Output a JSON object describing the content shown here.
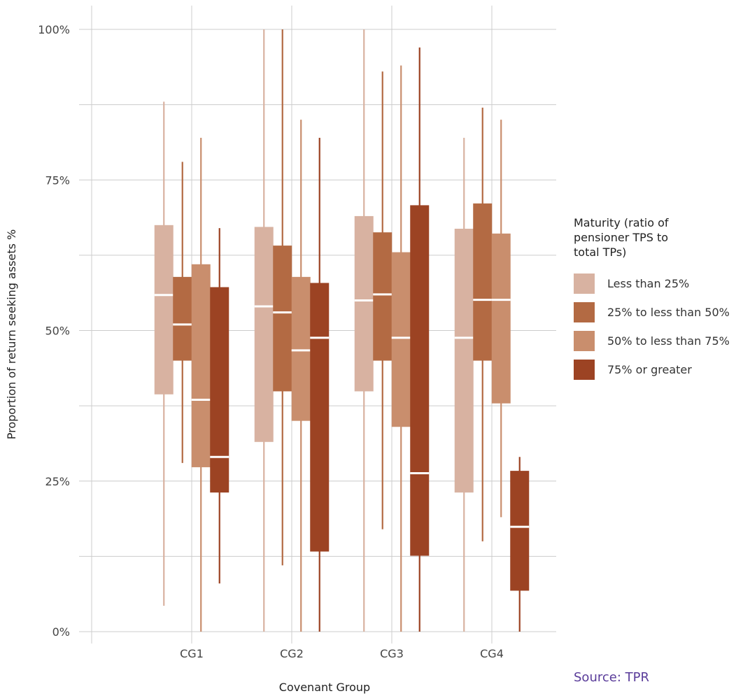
{
  "chart_data": {
    "type": "boxplot",
    "xlabel": "Covenant Group",
    "ylabel": "Proportion of return seeking assets %",
    "categories": [
      "CG1",
      "CG2",
      "CG3",
      "CG4"
    ],
    "ylim": [
      0,
      100
    ],
    "yticks": [
      0,
      25,
      50,
      75,
      100
    ],
    "ytick_labels": [
      "0%",
      "25%",
      "50%",
      "75%",
      "100%"
    ],
    "grid": true,
    "legend_position": "right",
    "legend_title": "Maturity (ratio of\npensioner TPS to\ntotal TPs)",
    "series": [
      {
        "name": "Less than 25%",
        "color": "#d8b2a1",
        "boxes": [
          {
            "whisker_low": 4.3,
            "q1": 39.4,
            "median": 55.9,
            "q3": 67.5,
            "whisker_high": 88
          },
          {
            "whisker_low": 0,
            "q1": 31.5,
            "median": 54,
            "q3": 67.2,
            "whisker_high": 100
          },
          {
            "whisker_low": 0,
            "q1": 39.9,
            "median": 55,
            "q3": 69,
            "whisker_high": 100
          },
          {
            "whisker_low": 0,
            "q1": 23.1,
            "median": 48.8,
            "q3": 66.9,
            "whisker_high": 82
          }
        ]
      },
      {
        "name": "25% to less than 50%",
        "color": "#b36a43",
        "boxes": [
          {
            "whisker_low": 28,
            "q1": 45,
            "median": 51,
            "q3": 58.9,
            "whisker_high": 78
          },
          {
            "whisker_low": 11,
            "q1": 39.9,
            "median": 53,
            "q3": 64.1,
            "whisker_high": 100
          },
          {
            "whisker_low": 17,
            "q1": 45,
            "median": 56,
            "q3": 66.3,
            "whisker_high": 93
          },
          {
            "whisker_low": 15,
            "q1": 45,
            "median": 55.1,
            "q3": 71.1,
            "whisker_high": 87
          }
        ]
      },
      {
        "name": "50% to less than 75%",
        "color": "#c98e6d",
        "boxes": [
          {
            "whisker_low": 0,
            "q1": 27.3,
            "median": 38.5,
            "q3": 61,
            "whisker_high": 82
          },
          {
            "whisker_low": 0,
            "q1": 35,
            "median": 46.7,
            "q3": 58.9,
            "whisker_high": 85
          },
          {
            "whisker_low": 0,
            "q1": 34,
            "median": 48.8,
            "q3": 63,
            "whisker_high": 94
          },
          {
            "whisker_low": 19,
            "q1": 37.9,
            "median": 55.1,
            "q3": 66.1,
            "whisker_high": 85
          }
        ]
      },
      {
        "name": "75% or greater",
        "color": "#9c4323",
        "boxes": [
          {
            "whisker_low": 8,
            "q1": 23.1,
            "median": 29,
            "q3": 57.2,
            "whisker_high": 67
          },
          {
            "whisker_low": 0,
            "q1": 13.3,
            "median": 48.8,
            "q3": 57.9,
            "whisker_high": 82
          },
          {
            "whisker_low": 0,
            "q1": 12.6,
            "median": 26.3,
            "q3": 70.8,
            "whisker_high": 97
          },
          {
            "whisker_low": 0,
            "q1": 6.8,
            "median": 17.4,
            "q3": 26.7,
            "whisker_high": 29
          }
        ]
      }
    ]
  },
  "source_text": "Source: TPR"
}
